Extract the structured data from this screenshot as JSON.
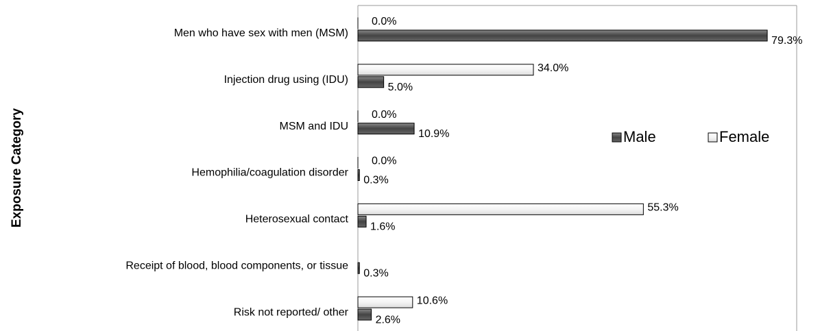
{
  "chart_data": {
    "type": "hbar",
    "ylabel": "Exposure Category",
    "categories": [
      "Men who have sex with men (MSM)",
      "Injection drug using (IDU)",
      "MSM and IDU",
      "Hemophilia/coagulation disorder",
      "Heterosexual contact",
      "Receipt of blood, blood components, or tissue",
      "Risk not reported/ other"
    ],
    "series": [
      {
        "name": "Male",
        "color": "#555555",
        "values": [
          79.3,
          5.0,
          10.9,
          0.3,
          1.6,
          0.3,
          2.6
        ],
        "value_labels": [
          "79.3%",
          "5.0%",
          "10.9%",
          "0.3%",
          "1.6%",
          "0.3%",
          "2.6%"
        ]
      },
      {
        "name": "Female",
        "color": "#ffffff",
        "values": [
          0.0,
          34.0,
          0.0,
          0.0,
          55.3,
          null,
          10.6
        ],
        "value_labels": [
          "0.0%",
          "34.0%",
          "0.0%",
          "0.0%",
          "55.3%",
          null,
          "10.6%"
        ]
      }
    ],
    "xlim": [
      0,
      85
    ],
    "legend": "right"
  }
}
